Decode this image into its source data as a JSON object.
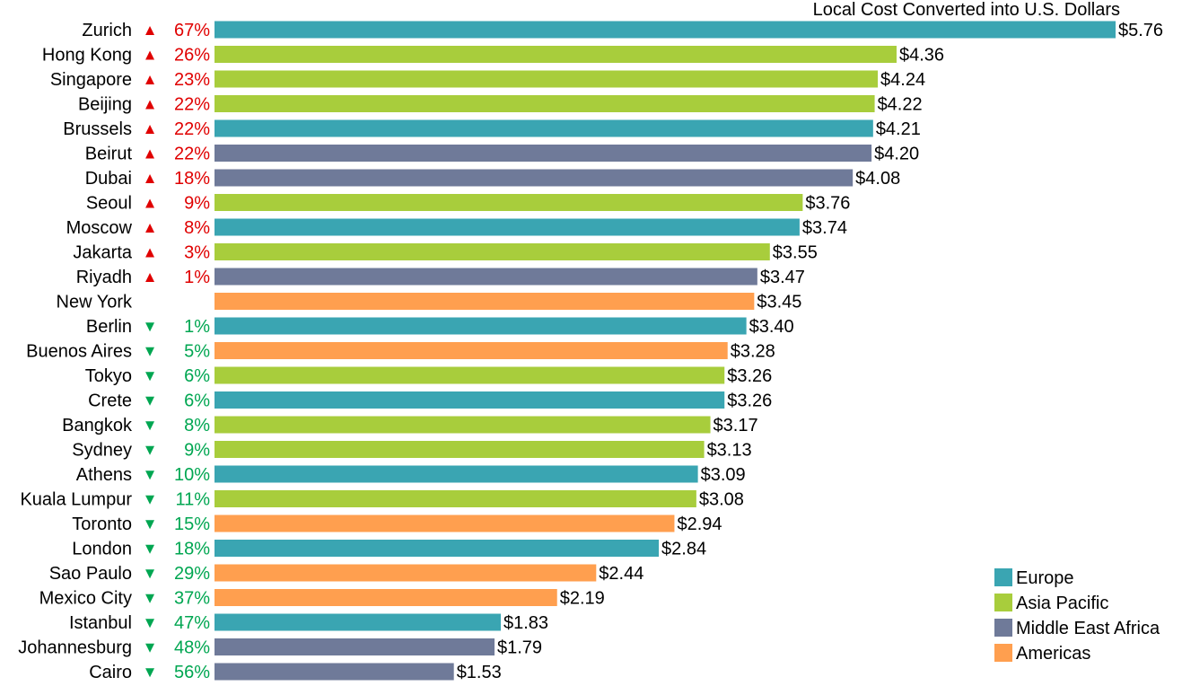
{
  "chart_data": {
    "type": "bar",
    "orientation": "horizontal",
    "title": "Local Cost Converted into U.S. Dollars",
    "xlabel": "",
    "ylabel": "",
    "xlim": [
      0,
      5.76
    ],
    "grid": false,
    "legend_position": "bottom-right",
    "value_prefix": "$",
    "regions": [
      {
        "key": "europe",
        "name": "Europe",
        "color": "#3AA5B2"
      },
      {
        "key": "asia",
        "name": "Asia Pacific",
        "color": "#A8CD3C"
      },
      {
        "key": "mea",
        "name": "Middle East Africa",
        "color": "#6F7A99"
      },
      {
        "key": "americas",
        "name": "Americas",
        "color": "#FF9F4F"
      }
    ],
    "change_colors": {
      "up": "#E00000",
      "down": "#00A651"
    },
    "categories": [
      "Zurich",
      "Hong Kong",
      "Singapore",
      "Beijing",
      "Brussels",
      "Beirut",
      "Dubai",
      "Seoul",
      "Moscow",
      "Jakarta",
      "Riyadh",
      "New York",
      "Berlin",
      "Buenos Aires",
      "Tokyo",
      "Crete",
      "Bangkok",
      "Sydney",
      "Athens",
      "Kuala Lumpur",
      "Toronto",
      "London",
      "Sao Paulo",
      "Mexico City",
      "Istanbul",
      "Johannesburg",
      "Cairo"
    ],
    "values": [
      5.76,
      4.36,
      4.24,
      4.22,
      4.21,
      4.2,
      4.08,
      3.76,
      3.74,
      3.55,
      3.47,
      3.45,
      3.4,
      3.28,
      3.26,
      3.26,
      3.17,
      3.13,
      3.09,
      3.08,
      2.94,
      2.84,
      2.44,
      2.19,
      1.83,
      1.79,
      1.53
    ],
    "value_labels": [
      "$5.76",
      "$4.36",
      "$4.24",
      "$4.22",
      "$4.21",
      "$4.20",
      "$4.08",
      "$3.76",
      "$3.74",
      "$3.55",
      "$3.47",
      "$3.45",
      "$3.40",
      "$3.28",
      "$3.26",
      "$3.26",
      "$3.17",
      "$3.13",
      "$3.09",
      "$3.08",
      "$2.94",
      "$2.84",
      "$2.44",
      "$2.19",
      "$1.83",
      "$1.79",
      "$1.53"
    ],
    "region_of": [
      "europe",
      "asia",
      "asia",
      "asia",
      "europe",
      "mea",
      "mea",
      "asia",
      "europe",
      "asia",
      "mea",
      "americas",
      "europe",
      "americas",
      "asia",
      "europe",
      "asia",
      "asia",
      "europe",
      "asia",
      "americas",
      "europe",
      "americas",
      "americas",
      "europe",
      "mea",
      "mea"
    ],
    "change_direction": [
      "up",
      "up",
      "up",
      "up",
      "up",
      "up",
      "up",
      "up",
      "up",
      "up",
      "up",
      "",
      "down",
      "down",
      "down",
      "down",
      "down",
      "down",
      "down",
      "down",
      "down",
      "down",
      "down",
      "down",
      "down",
      "down",
      "down"
    ],
    "change_labels": [
      "67%",
      "26%",
      "23%",
      "22%",
      "22%",
      "22%",
      "18%",
      "9%",
      "8%",
      "3%",
      "1%",
      "",
      "1%",
      "5%",
      "6%",
      "6%",
      "8%",
      "9%",
      "10%",
      "11%",
      "15%",
      "18%",
      "29%",
      "37%",
      "47%",
      "48%",
      "56%"
    ],
    "arrow_glyphs": {
      "up": "▲",
      "down": "▼"
    }
  }
}
